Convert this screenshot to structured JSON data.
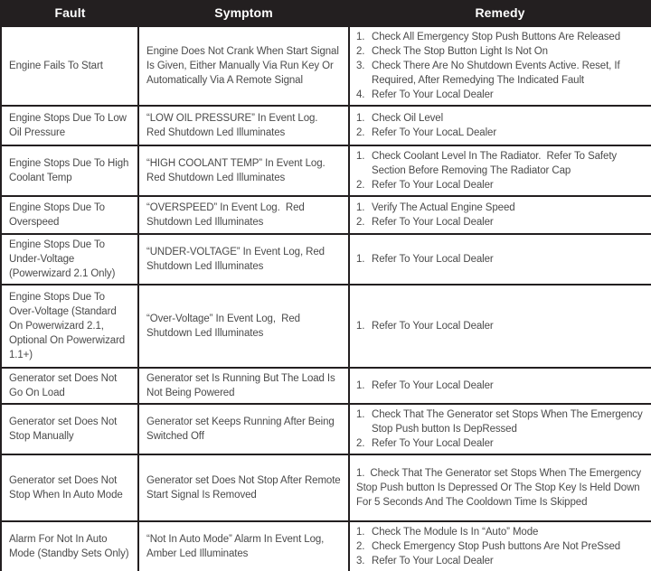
{
  "header": {
    "columns": [
      "Fault",
      "Symptom",
      "Remedy"
    ]
  },
  "rows": [
    {
      "fault": "Engine Fails To Start",
      "symptom": "Engine Does Not Crank When Start Signal Is Given, Either Manually Via Run Key Or Automatically Via A Remote Signal",
      "remedies": [
        "Check All Emergency Stop Push Buttons Are Released",
        "Check The Stop Button Light Is Not On",
        "Check There Are No Shutdown Events Active. Reset, If Required, After Remedying The Indicated Fault",
        "Refer To Your Local Dealer"
      ]
    },
    {
      "fault": "Engine Stops Due To Low Oil Pressure",
      "symptom": "“LOW OIL PRESSURE” In Event Log.  Red Shutdown Led Illuminates",
      "remedies": [
        "Check Oil Level",
        "Refer To Your LocaL Dealer"
      ]
    },
    {
      "fault": "Engine Stops Due To High Coolant Temp",
      "symptom": "“HIGH COOLANT TEMP” In Event Log. Red Shutdown Led Illuminates",
      "remedies": [
        "Check Coolant Level In The Radiator.  Refer To Safety Section Before Removing The Radiator Cap",
        "Refer To Your Local Dealer"
      ]
    },
    {
      "fault": "Engine Stops Due To Overspeed",
      "symptom": "“OVERSPEED” In Event Log.  Red Shutdown Led Illuminates",
      "remedies": [
        "Verify The Actual Engine Speed",
        "Refer To Your Local Dealer"
      ]
    },
    {
      "fault": "Engine Stops Due To Under-Voltage (Powerwizard 2.1 Only)",
      "symptom": "“UNDER-VOLTAGE” In Event Log, Red Shutdown Led Illuminates",
      "remedies": [
        "Refer To Your Local Dealer"
      ]
    },
    {
      "fault": "Engine Stops Due To Over-Voltage (Standard On Powerwizard 2.1, Optional On Powerwizard 1.1+)",
      "symptom": "“Over-Voltage” In Event Log,  Red Shutdown Led Illuminates",
      "remedies": [
        "Refer To Your Local Dealer"
      ]
    },
    {
      "fault": "Generator set Does Not Go On Load",
      "symptom": "Generator set Is Running But The Load Is Not Being Powered",
      "remedies": [
        "Refer To Your Local Dealer"
      ]
    },
    {
      "fault": "Generator set Does Not Stop Manually",
      "symptom": "Generator set Keeps Running After Being Switched Off",
      "remedies": [
        "Check That The Generator set Stops When The Emergency Stop Push button Is DepRessed",
        "Refer To Your Local Dealer"
      ]
    },
    {
      "fault": "Generator set Does Not Stop When In Auto Mode",
      "symptom": "Generator set Does Not Stop After Remote Start Signal Is Removed",
      "remedy_wrap": "flush",
      "remedies": [
        "Check That The Generator set Stops When The Emergency Stop Push button Is Depressed Or The Stop Key Is Held Down For 5 Seconds And The Cooldown Time Is Skipped"
      ]
    },
    {
      "fault": "Alarm For Not In Auto Mode (Standby Sets Only)",
      "symptom": "“Not In Auto Mode” Alarm In Event Log, Amber Led Illuminates",
      "remedies": [
        "Check The Module Is In “Auto” Mode",
        "Check Emergency Stop Push buttons Are Not PreSsed",
        "Refer To Your Local Dealer"
      ]
    }
  ]
}
